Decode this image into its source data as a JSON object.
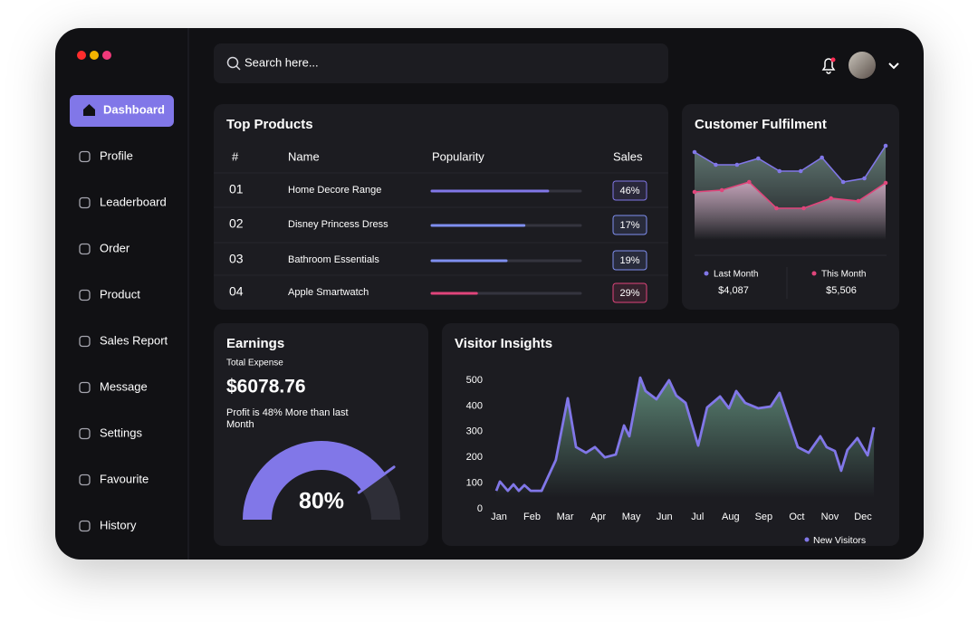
{
  "search": {
    "placeholder": "Search here..."
  },
  "sidebar": {
    "active": 0,
    "items": [
      "Dashboard",
      "Profile",
      "Leaderboard",
      "Order",
      "Product",
      "Sales Report",
      "Message",
      "Settings",
      "Favourite",
      "History"
    ]
  },
  "top_products": {
    "title": "Top Products",
    "columns": [
      "#",
      "Name",
      "Popularity",
      "Sales"
    ],
    "rows": [
      {
        "rank": "01",
        "name": "Home Decore Range",
        "popularity": 78,
        "sales": 46,
        "sales_label": "46%",
        "color": "#8177e8"
      },
      {
        "rank": "02",
        "name": "Disney Princess Dress",
        "popularity": 62,
        "sales": 17,
        "sales_label": "17%",
        "color": "#7f8ff0"
      },
      {
        "rank": "03",
        "name": "Bathroom Essentials",
        "popularity": 50,
        "sales": 19,
        "sales_label": "19%",
        "color": "#7f8ff0"
      },
      {
        "rank": "04",
        "name": "Apple Smartwatch",
        "popularity": 30,
        "sales": 29,
        "sales_label": "29%",
        "color": "#e0457b"
      }
    ]
  },
  "customer_fulfilment": {
    "chart_data": {
      "type": "line",
      "title": "Customer Fulfilment",
      "ylim": [
        0,
        100
      ],
      "series": [
        {
          "name": "Last Month",
          "color": "#8177e8",
          "values": [
            92,
            78,
            78,
            85,
            71,
            71,
            86,
            59,
            63,
            99
          ],
          "total": 4087,
          "total_label": "$4,087"
        },
        {
          "name": "This Month",
          "color": "#e0457b",
          "values": [
            48,
            50,
            59,
            30,
            30,
            41,
            38,
            58
          ],
          "total": 5506,
          "total_label": "$5,506"
        }
      ]
    }
  },
  "earnings": {
    "title": "Earnings",
    "subtitle": "Total Expense",
    "amount": 6078.76,
    "amount_label": "$6078.76",
    "note": [
      "Profit is 48% More than last",
      "Month"
    ],
    "gauge": {
      "value": 80,
      "value_label": "80%",
      "range": [
        0,
        100
      ]
    }
  },
  "visitor_insights": {
    "chart_data": {
      "type": "area",
      "title": "Visitor Insights",
      "xlim": [
        -0.1,
        11.35
      ],
      "xticks": [
        {
          "value": 0,
          "label": "Jan"
        },
        {
          "value": 1,
          "label": "Feb"
        },
        {
          "value": 2,
          "label": "Mar"
        },
        {
          "value": 3,
          "label": "Apr"
        },
        {
          "value": 4,
          "label": "May"
        },
        {
          "value": 5,
          "label": "Jun"
        },
        {
          "value": 6,
          "label": "Jul"
        },
        {
          "value": 7,
          "label": "Aug"
        },
        {
          "value": 8,
          "label": "Sep"
        },
        {
          "value": 9,
          "label": "Oct"
        },
        {
          "value": 10,
          "label": "Nov"
        },
        {
          "value": 11,
          "label": "Dec"
        }
      ],
      "ylim": [
        0,
        500
      ],
      "yticks": [
        0,
        100,
        200,
        300,
        400,
        500
      ],
      "x": [
        -0.08,
        0.03,
        0.27,
        0.44,
        0.6,
        0.77,
        0.96,
        1.29,
        1.72,
        2.08,
        2.33,
        2.63,
        2.9,
        3.2,
        3.53,
        3.78,
        3.94,
        4.27,
        4.43,
        4.76,
        5.14,
        5.36,
        5.64,
        6.02,
        6.29,
        6.68,
        6.95,
        7.17,
        7.44,
        7.83,
        8.21,
        8.48,
        9.03,
        9.36,
        9.71,
        9.9,
        10.15,
        10.34,
        10.53,
        10.83,
        11.14,
        11.33
      ],
      "series": [
        {
          "name": "New Visitors",
          "color": "#8177e8",
          "values": [
            70,
            106,
            70,
            95,
            70,
            92,
            70,
            70,
            190,
            430,
            240,
            218,
            240,
            200,
            211,
            324,
            282,
            510,
            458,
            426,
            500,
            440,
            412,
            246,
            394,
            437,
            391,
            458,
            412,
            391,
            398,
            451,
            240,
            218,
            282,
            240,
            225,
            148,
            229,
            275,
            208,
            317
          ]
        }
      ]
    }
  }
}
